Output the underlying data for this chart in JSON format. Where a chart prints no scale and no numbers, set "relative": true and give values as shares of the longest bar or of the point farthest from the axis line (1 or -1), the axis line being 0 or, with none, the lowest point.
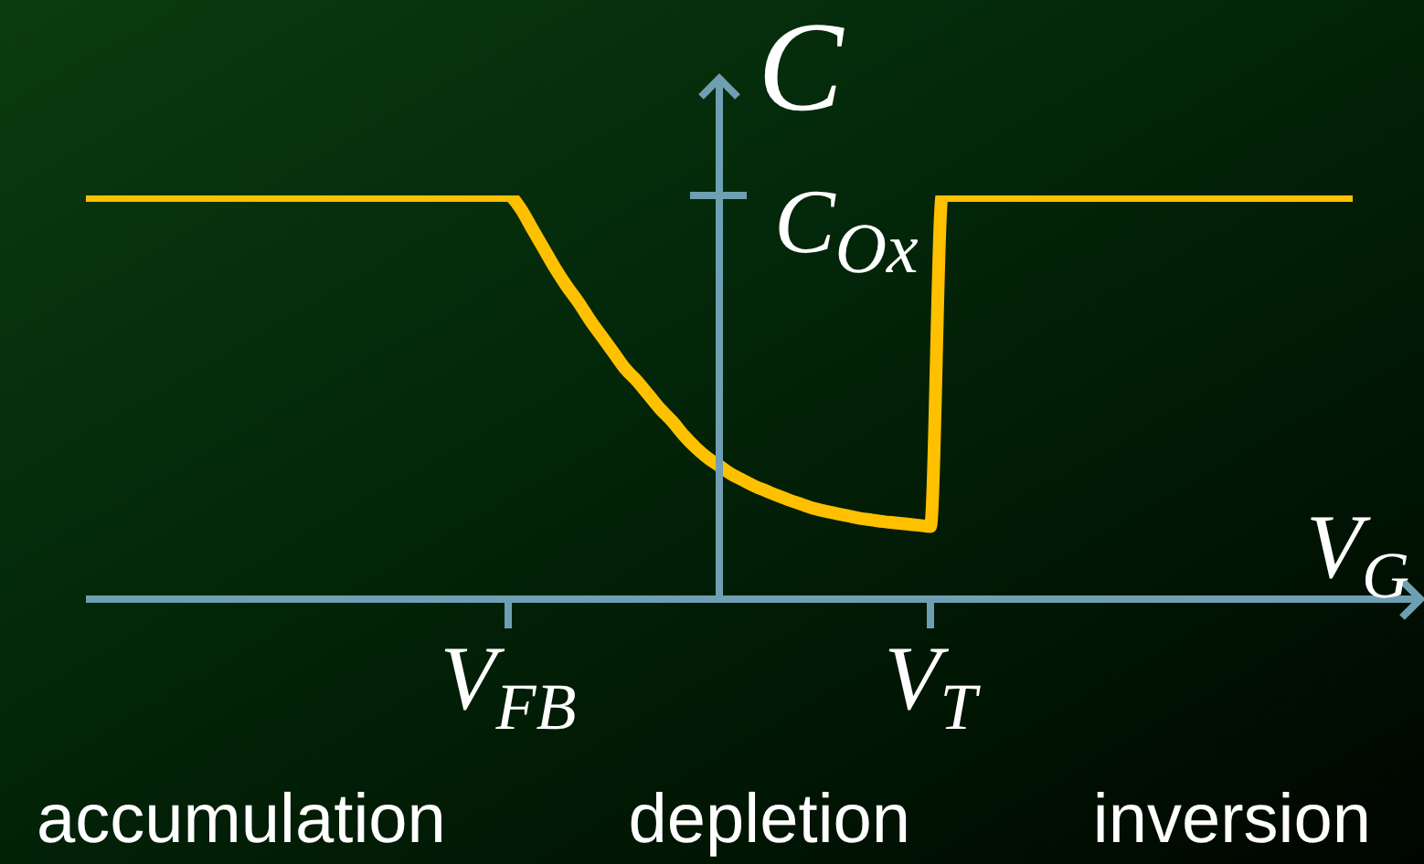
{
  "chart_data": {
    "type": "line",
    "relative": true,
    "xlabel": "V$_{G}$",
    "ylabel": "C",
    "categories": [
      null,
      null,
      null,
      null,
      null,
      null,
      null,
      null,
      null,
      null,
      null,
      null,
      null,
      null,
      null,
      null,
      null,
      null,
      null,
      null,
      null,
      null,
      null,
      null,
      null,
      null,
      null,
      null,
      null,
      null,
      null,
      null,
      null,
      null,
      null,
      null,
      "V$_{FB}$",
      null,
      null,
      null,
      null,
      null,
      null,
      null,
      null,
      null,
      null,
      null,
      null,
      null,
      null,
      null,
      null,
      null,
      null,
      null,
      null,
      null,
      null,
      null,
      null,
      null,
      null,
      null,
      null,
      null,
      null,
      null,
      null,
      null,
      null,
      null,
      "V$_{T}$",
      null,
      null,
      null,
      null,
      null,
      null,
      null,
      null,
      null,
      null,
      null,
      null,
      null,
      null,
      null,
      null,
      null,
      null,
      null,
      null,
      null,
      null,
      null,
      null,
      null,
      null,
      null,
      null,
      null,
      null,
      null,
      null,
      null,
      null,
      null,
      null
    ],
    "values": [
      1,
      1,
      1,
      1,
      1,
      1,
      1,
      1,
      1,
      1,
      1,
      1,
      1,
      1,
      1,
      1,
      1,
      1,
      1,
      1,
      1,
      1,
      1,
      1,
      1,
      1,
      1,
      1,
      1,
      1,
      1,
      1,
      1,
      1,
      1,
      1,
      1,
      0.97,
      0.92,
      0.87,
      0.82,
      0.775,
      0.735,
      0.69,
      0.65,
      0.61,
      0.57,
      0.54,
      0.505,
      0.47,
      0.44,
      0.405,
      0.375,
      0.35,
      0.33,
      0.31,
      0.295,
      0.28,
      0.268,
      0.256,
      0.245,
      0.235,
      0.225,
      0.218,
      0.212,
      0.206,
      0.2,
      0.196,
      0.192,
      0.189,
      0.186,
      0.183,
      0.18,
      1,
      1,
      1,
      1,
      1,
      1,
      1,
      1,
      1,
      1,
      1,
      1,
      1,
      1,
      1,
      1,
      1,
      1,
      1,
      1,
      1,
      1,
      1,
      1,
      1,
      1,
      1,
      1,
      1,
      1,
      1,
      1,
      1,
      1,
      1,
      1
    ],
    "color": "#ffc000",
    "annotations": [
      "C$_{Ox}$",
      "accumulation",
      "depletion",
      "inversion"
    ]
  }
}
